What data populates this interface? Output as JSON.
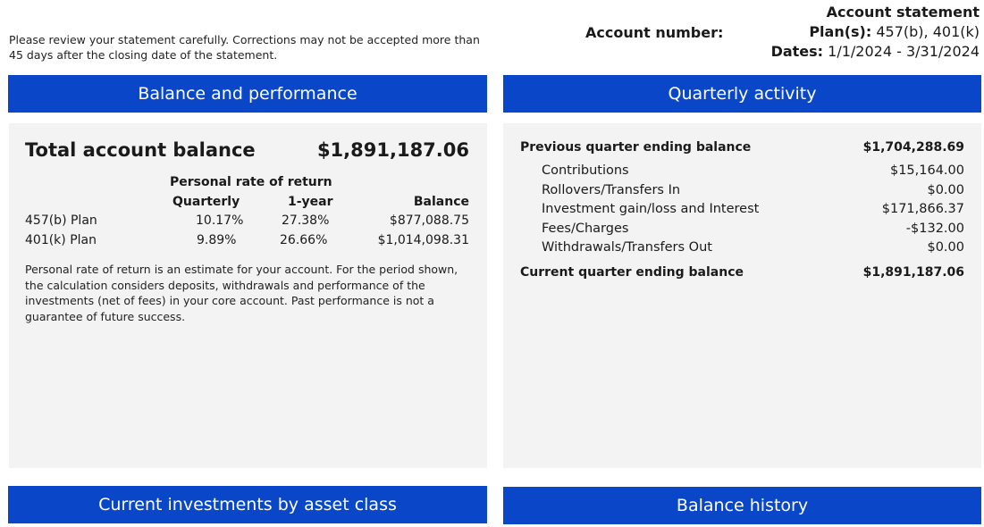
{
  "header": {
    "notice": "Please review your statement carefully. Corrections may not be accepted more than 45 days after the closing date of the statement.",
    "account_number_label": "Account number:",
    "statement_title": "Account statement",
    "plans_label": "Plan(s):",
    "plans_value": " 457(b), 401(k)",
    "dates_label": "Dates:",
    "dates_value": " 1/1/2024 - 3/31/2024"
  },
  "balance_performance": {
    "banner": "Balance and performance",
    "total_label": "Total account balance",
    "total_value": "$1,891,187.06",
    "ror_header": "Personal rate of return",
    "col_quarterly": "Quarterly",
    "col_1year": "1-year",
    "col_balance": "Balance",
    "rows": [
      {
        "plan": "457(b) Plan",
        "quarterly": "10.17%",
        "year": "27.38%",
        "balance": "$877,088.75"
      },
      {
        "plan": "401(k) Plan",
        "quarterly": "9.89%",
        "year": "26.66%",
        "balance": "$1,014,098.31"
      }
    ],
    "note": "Personal rate of return is an estimate for your account. For the period shown, the calculation considers deposits, withdrawals and performance of the investments (net of fees) in your core account. Past performance is not a guarantee of future success."
  },
  "quarterly_activity": {
    "banner": "Quarterly activity",
    "previous_label": "Previous quarter ending balance",
    "previous_value": "$1,704,288.69",
    "items": [
      {
        "label": "Contributions",
        "value": "$15,164.00"
      },
      {
        "label": "Rollovers/Transfers In",
        "value": "$0.00"
      },
      {
        "label": "Investment gain/loss and Interest",
        "value": "$171,866.37"
      },
      {
        "label": "Fees/Charges",
        "value": "-$132.00"
      },
      {
        "label": "Withdrawals/Transfers Out",
        "value": "$0.00"
      }
    ],
    "current_label": "Current quarter ending balance",
    "current_value": "$1,891,187.06"
  },
  "bottom": {
    "investments_banner": "Current investments by asset class",
    "history_banner": "Balance history"
  }
}
